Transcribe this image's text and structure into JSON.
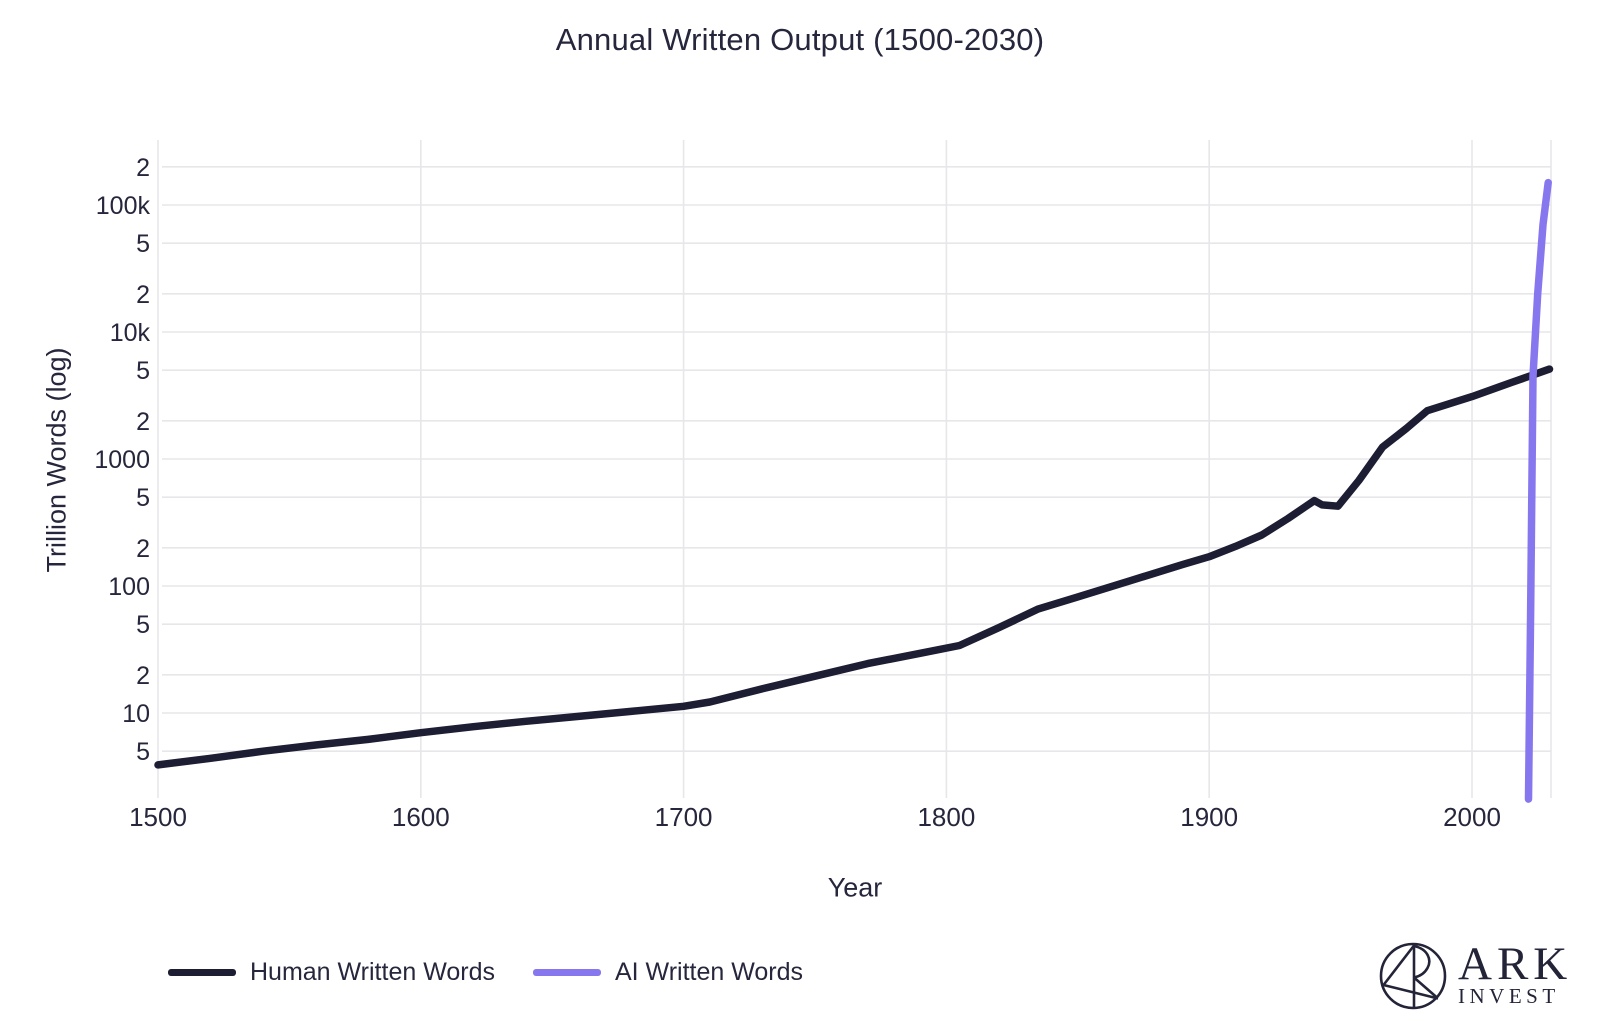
{
  "title": "Annual Written Output (1500-2030)",
  "axes": {
    "x_label": "Year",
    "y_label": "Trillion Words (log)"
  },
  "legend": {
    "items": [
      {
        "label": "Human Written Words",
        "color": "#1d1d33"
      },
      {
        "label": "AI Written Words",
        "color": "#8777ee"
      }
    ]
  },
  "branding": {
    "logo_name": "ark-invest-logo",
    "name": "ARK",
    "subname": "INVEST"
  },
  "colors": {
    "text": "#26263c",
    "gridline": "#e7e7ea",
    "human_line": "#1d1d33",
    "ai_line": "#8777ee",
    "background": "#ffffff"
  },
  "chart_data": {
    "type": "line",
    "title": "Annual Written Output (1500-2030)",
    "xlabel": "Year",
    "ylabel": "Trillion Words (log)",
    "x_range": [
      1500,
      2030
    ],
    "y_scale": "log",
    "y_range": [
      2,
      200000
    ],
    "grid": true,
    "legend_position": "bottom-left",
    "x_ticks": [
      1500,
      1600,
      1700,
      1800,
      1900,
      2000
    ],
    "y_ticks": [
      {
        "label": "2",
        "value": 200000
      },
      {
        "label": "100k",
        "value": 100000
      },
      {
        "label": "5",
        "value": 50000
      },
      {
        "label": "2",
        "value": 20000
      },
      {
        "label": "10k",
        "value": 10000
      },
      {
        "label": "5",
        "value": 5000
      },
      {
        "label": "2",
        "value": 2000
      },
      {
        "label": "1000",
        "value": 1000
      },
      {
        "label": "5",
        "value": 500
      },
      {
        "label": "2",
        "value": 200
      },
      {
        "label": "100",
        "value": 100
      },
      {
        "label": "5",
        "value": 50
      },
      {
        "label": "2",
        "value": 20
      },
      {
        "label": "10",
        "value": 10
      },
      {
        "label": "5",
        "value": 5
      }
    ],
    "series": [
      {
        "name": "Human Written Words",
        "color": "#1d1d33",
        "units": "trillion words per year",
        "points": [
          [
            1500,
            3.9
          ],
          [
            1520,
            4.4
          ],
          [
            1540,
            5.0
          ],
          [
            1560,
            5.6
          ],
          [
            1580,
            6.2
          ],
          [
            1600,
            7.0
          ],
          [
            1620,
            7.8
          ],
          [
            1640,
            8.6
          ],
          [
            1660,
            9.4
          ],
          [
            1680,
            10.3
          ],
          [
            1700,
            11.3
          ],
          [
            1710,
            12.2
          ],
          [
            1730,
            15.5
          ],
          [
            1750,
            19.5
          ],
          [
            1770,
            24.5
          ],
          [
            1790,
            29.5
          ],
          [
            1805,
            34
          ],
          [
            1820,
            47
          ],
          [
            1835,
            66
          ],
          [
            1850,
            82
          ],
          [
            1870,
            110
          ],
          [
            1890,
            148
          ],
          [
            1900,
            170
          ],
          [
            1910,
            205
          ],
          [
            1920,
            252
          ],
          [
            1930,
            340
          ],
          [
            1940,
            470
          ],
          [
            1943,
            435
          ],
          [
            1949,
            425
          ],
          [
            1957,
            680
          ],
          [
            1966,
            1240
          ],
          [
            1975,
            1740
          ],
          [
            1983,
            2400
          ],
          [
            2000,
            3100
          ],
          [
            2015,
            4000
          ],
          [
            2029.5,
            5100
          ]
        ]
      },
      {
        "name": "AI Written Words",
        "color": "#8777ee",
        "units": "trillion words per year",
        "points": [
          [
            2021.5,
            2.1
          ],
          [
            2022.3,
            60
          ],
          [
            2023.2,
            4500
          ],
          [
            2025,
            20000
          ],
          [
            2027,
            70000
          ],
          [
            2029,
            150000
          ]
        ]
      }
    ]
  }
}
